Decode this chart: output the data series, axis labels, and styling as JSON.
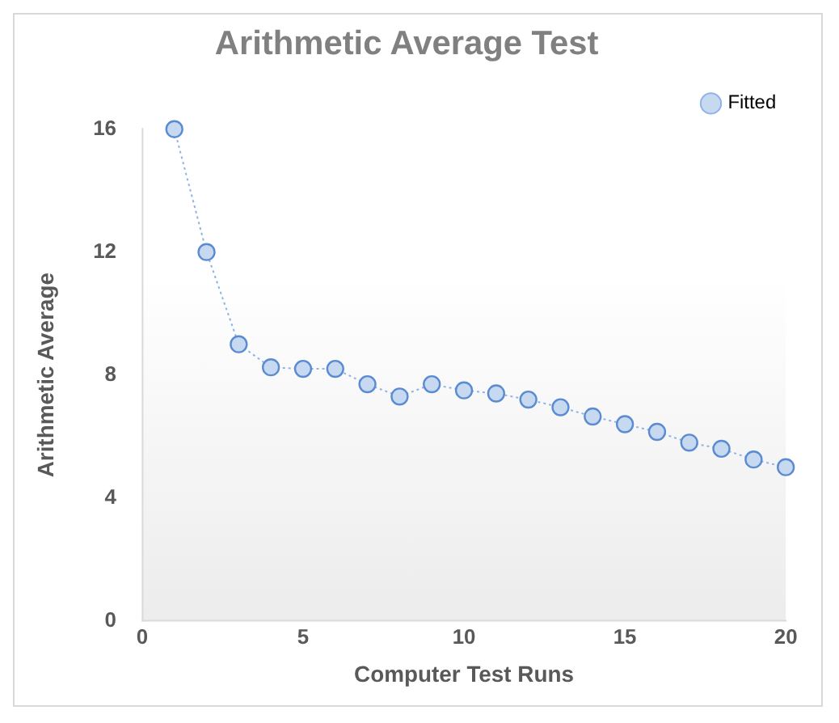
{
  "chart_data": {
    "type": "line",
    "title": "Arithmetic Average Test",
    "xlabel": "Computer Test Runs",
    "ylabel": "Arithmetic Average",
    "x": [
      1,
      2,
      3,
      4,
      5,
      6,
      7,
      8,
      9,
      10,
      11,
      12,
      13,
      14,
      15,
      16,
      17,
      18,
      19,
      20
    ],
    "series": [
      {
        "name": "Fitted",
        "color": "#8eb4e3",
        "values": [
          16,
          12,
          9,
          8.25,
          8.2,
          8.2,
          7.7,
          7.3,
          7.7,
          7.5,
          7.4,
          7.2,
          6.95,
          6.65,
          6.4,
          6.15,
          5.8,
          5.6,
          5.25,
          5
        ]
      }
    ],
    "xlim": [
      0,
      20
    ],
    "xticks": [
      0,
      5,
      10,
      15,
      20
    ],
    "ylim": [
      0,
      16
    ],
    "yticks": [
      0,
      4,
      8,
      12,
      16
    ],
    "grid": false,
    "legend": "top right",
    "marker": "circle",
    "line_style": "dotted"
  }
}
